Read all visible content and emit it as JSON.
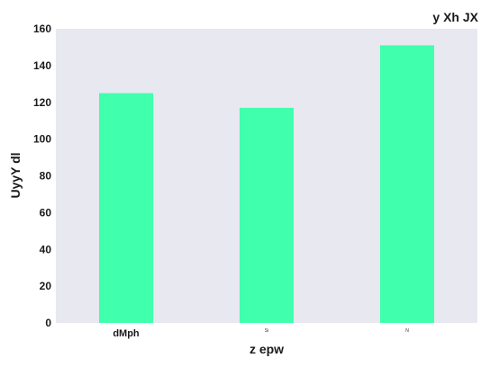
{
  "chart_data": {
    "type": "bar",
    "title": "y Xh JX",
    "xlabel": "z  epw",
    "ylabel": "UyyY dl",
    "categories": [
      "dMph",
      "Si",
      "N"
    ],
    "values": [
      125,
      117,
      151
    ],
    "ylim": [
      0,
      160
    ],
    "yticks": [
      0,
      20,
      40,
      60,
      80,
      100,
      120,
      140,
      160
    ],
    "grid": false,
    "bar_color": "#40ffad",
    "plot_background": "#e8e8f1"
  }
}
